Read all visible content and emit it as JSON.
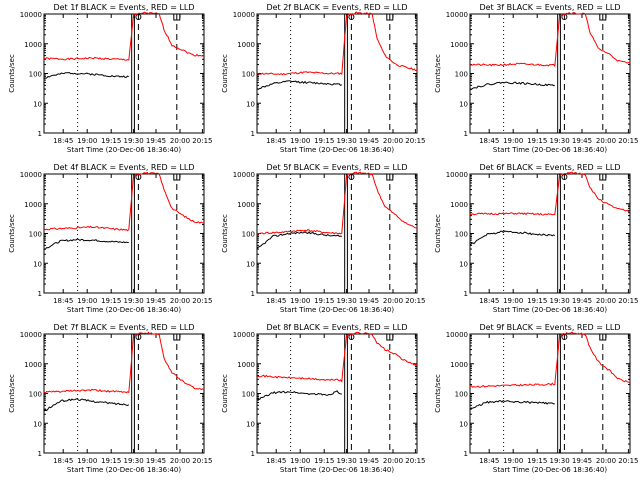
{
  "chart_data": [
    {
      "type": "line",
      "title": "Det 1f BLACK = Events, RED = LLD",
      "xlabel": "Start Time (20-Dec-06 18:36:40)",
      "ylabel": "Counts/sec",
      "yscale": "log",
      "ylim": [
        1,
        10000
      ],
      "yticks": [
        "1",
        "10",
        "100",
        "1000",
        "10000"
      ],
      "xticks": [
        "18:45",
        "19:00",
        "19:15",
        "19:30",
        "19:45",
        "20:00",
        "20:15"
      ],
      "grid": false,
      "series": [
        {
          "color": "#ff0000",
          "label": "LLD",
          "values": [
            [
              0,
              320
            ],
            [
              0.15,
              305
            ],
            [
              0.3,
              330
            ],
            [
              0.45,
              300
            ],
            [
              0.53,
              290
            ],
            [
              0.56,
              9000
            ],
            [
              0.62,
              11000
            ],
            [
              0.72,
              10000
            ],
            [
              0.75,
              3000
            ],
            [
              0.8,
              900
            ],
            [
              0.87,
              600
            ],
            [
              0.93,
              420
            ],
            [
              1,
              400
            ]
          ]
        },
        {
          "color": "#000000",
          "label": "Events",
          "values": [
            [
              0,
              70
            ],
            [
              0.05,
              85
            ],
            [
              0.15,
              105
            ],
            [
              0.3,
              95
            ],
            [
              0.45,
              80
            ],
            [
              0.53,
              78
            ]
          ]
        }
      ]
    },
    {
      "type": "line",
      "title": "Det 2f BLACK = Events, RED = LLD",
      "xlabel": "Start Time (20-Dec-06 18:36:40)",
      "ylabel": "Counts/sec",
      "yscale": "log",
      "ylim": [
        1,
        10000
      ],
      "yticks": [
        "1",
        "10",
        "100",
        "1000",
        "10000"
      ],
      "xticks": [
        "18:45",
        "19:00",
        "19:15",
        "19:30",
        "19:45",
        "20:00",
        "20:15"
      ],
      "grid": false,
      "series": [
        {
          "color": "#ff0000",
          "label": "LLD",
          "values": [
            [
              0,
              100
            ],
            [
              0.15,
              95
            ],
            [
              0.3,
              110
            ],
            [
              0.45,
              100
            ],
            [
              0.53,
              100
            ],
            [
              0.56,
              9000
            ],
            [
              0.62,
              11000
            ],
            [
              0.72,
              10000
            ],
            [
              0.75,
              1500
            ],
            [
              0.8,
              400
            ],
            [
              0.87,
              200
            ],
            [
              0.93,
              160
            ],
            [
              1,
              130
            ]
          ]
        },
        {
          "color": "#000000",
          "label": "Events",
          "values": [
            [
              0,
              30
            ],
            [
              0.1,
              45
            ],
            [
              0.2,
              55
            ],
            [
              0.3,
              50
            ],
            [
              0.45,
              45
            ],
            [
              0.53,
              42
            ]
          ]
        }
      ]
    },
    {
      "type": "line",
      "title": "Det 3f BLACK = Events, RED = LLD",
      "xlabel": "Start Time (20-Dec-06 18:36:40)",
      "ylabel": "Counts/sec",
      "yscale": "log",
      "ylim": [
        1,
        10000
      ],
      "yticks": [
        "1",
        "10",
        "100",
        "1000",
        "10000"
      ],
      "xticks": [
        "18:45",
        "19:00",
        "19:15",
        "19:30",
        "19:45",
        "20:00",
        "20:15"
      ],
      "grid": false,
      "series": [
        {
          "color": "#ff0000",
          "label": "LLD",
          "values": [
            [
              0,
              200
            ],
            [
              0.15,
              190
            ],
            [
              0.3,
              210
            ],
            [
              0.45,
              195
            ],
            [
              0.53,
              190
            ],
            [
              0.56,
              9000
            ],
            [
              0.62,
              11000
            ],
            [
              0.72,
              10000
            ],
            [
              0.75,
              2500
            ],
            [
              0.8,
              700
            ],
            [
              0.87,
              450
            ],
            [
              0.93,
              260
            ],
            [
              1,
              220
            ]
          ]
        },
        {
          "color": "#000000",
          "label": "Events",
          "values": [
            [
              0,
              30
            ],
            [
              0.1,
              42
            ],
            [
              0.2,
              50
            ],
            [
              0.3,
              48
            ],
            [
              0.45,
              42
            ],
            [
              0.53,
              40
            ]
          ]
        }
      ]
    },
    {
      "type": "line",
      "title": "Det 4f BLACK = Events, RED = LLD",
      "xlabel": "Start Time (20-Dec-06 18:36:40)",
      "ylabel": "Counts/sec",
      "yscale": "log",
      "ylim": [
        1,
        10000
      ],
      "yticks": [
        "1",
        "10",
        "100",
        "1000",
        "10000"
      ],
      "xticks": [
        "18:45",
        "19:00",
        "19:15",
        "19:30",
        "19:45",
        "20:00",
        "20:15"
      ],
      "grid": false,
      "series": [
        {
          "color": "#ff0000",
          "label": "LLD",
          "values": [
            [
              0,
              140
            ],
            [
              0.15,
              150
            ],
            [
              0.3,
              165
            ],
            [
              0.45,
              140
            ],
            [
              0.53,
              130
            ],
            [
              0.56,
              9000
            ],
            [
              0.62,
              11000
            ],
            [
              0.72,
              10000
            ],
            [
              0.75,
              3000
            ],
            [
              0.8,
              700
            ],
            [
              0.87,
              400
            ],
            [
              0.93,
              260
            ],
            [
              1,
              220
            ]
          ]
        },
        {
          "color": "#000000",
          "label": "Events",
          "values": [
            [
              0,
              30
            ],
            [
              0.1,
              55
            ],
            [
              0.2,
              62
            ],
            [
              0.3,
              60
            ],
            [
              0.45,
              52
            ],
            [
              0.53,
              50
            ]
          ]
        }
      ]
    },
    {
      "type": "line",
      "title": "Det 5f BLACK = Events, RED = LLD",
      "xlabel": "Start Time (20-Dec-06 18:36:40)",
      "ylabel": "Counts/sec",
      "yscale": "log",
      "ylim": [
        1,
        10000
      ],
      "yticks": [
        "1",
        "10",
        "100",
        "1000",
        "10000"
      ],
      "xticks": [
        "18:45",
        "19:00",
        "19:15",
        "19:30",
        "19:45",
        "20:00",
        "20:15"
      ],
      "grid": false,
      "series": [
        {
          "color": "#ff0000",
          "label": "LLD",
          "values": [
            [
              0,
              100
            ],
            [
              0.15,
              110
            ],
            [
              0.3,
              130
            ],
            [
              0.45,
              105
            ],
            [
              0.53,
              100
            ],
            [
              0.56,
              9000
            ],
            [
              0.62,
              11000
            ],
            [
              0.72,
              10000
            ],
            [
              0.75,
              3000
            ],
            [
              0.8,
              800
            ],
            [
              0.87,
              400
            ],
            [
              0.93,
              220
            ],
            [
              1,
              150
            ]
          ]
        },
        {
          "color": "#000000",
          "label": "Events",
          "values": [
            [
              0,
              30
            ],
            [
              0.1,
              80
            ],
            [
              0.2,
              100
            ],
            [
              0.3,
              110
            ],
            [
              0.45,
              85
            ],
            [
              0.53,
              80
            ]
          ]
        }
      ]
    },
    {
      "type": "line",
      "title": "Det 6f BLACK = Events, RED = LLD",
      "xlabel": "Start Time (20-Dec-06 18:36:40)",
      "ylabel": "Counts/sec",
      "yscale": "log",
      "ylim": [
        1,
        10000
      ],
      "yticks": [
        "1",
        "10",
        "100",
        "1000",
        "10000"
      ],
      "xticks": [
        "18:45",
        "19:00",
        "19:15",
        "19:30",
        "19:45",
        "20:00",
        "20:15"
      ],
      "grid": false,
      "series": [
        {
          "color": "#ff0000",
          "label": "LLD",
          "values": [
            [
              0,
              450
            ],
            [
              0.15,
              460
            ],
            [
              0.3,
              470
            ],
            [
              0.45,
              440
            ],
            [
              0.53,
              430
            ],
            [
              0.56,
              9000
            ],
            [
              0.62,
              11000
            ],
            [
              0.72,
              10000
            ],
            [
              0.75,
              3500
            ],
            [
              0.8,
              1500
            ],
            [
              0.87,
              900
            ],
            [
              0.93,
              650
            ],
            [
              1,
              550
            ]
          ]
        },
        {
          "color": "#000000",
          "label": "Events",
          "values": [
            [
              0,
              40
            ],
            [
              0.1,
              90
            ],
            [
              0.2,
              115
            ],
            [
              0.3,
              110
            ],
            [
              0.45,
              90
            ],
            [
              0.53,
              85
            ]
          ]
        }
      ]
    },
    {
      "type": "line",
      "title": "Det 7f BLACK = Events, RED = LLD",
      "xlabel": "Start Time (20-Dec-06 18:36:40)",
      "ylabel": "Counts/sec",
      "yscale": "log",
      "ylim": [
        1,
        10000
      ],
      "yticks": [
        "1",
        "10",
        "100",
        "1000",
        "10000"
      ],
      "xticks": [
        "18:45",
        "19:00",
        "19:15",
        "19:30",
        "19:45",
        "20:00",
        "20:15"
      ],
      "grid": false,
      "series": [
        {
          "color": "#ff0000",
          "label": "LLD",
          "values": [
            [
              0,
              110
            ],
            [
              0.15,
              120
            ],
            [
              0.3,
              130
            ],
            [
              0.45,
              115
            ],
            [
              0.53,
              110
            ],
            [
              0.56,
              9000
            ],
            [
              0.62,
              11000
            ],
            [
              0.72,
              10000
            ],
            [
              0.75,
              1500
            ],
            [
              0.8,
              500
            ],
            [
              0.87,
              250
            ],
            [
              0.93,
              160
            ],
            [
              1,
              130
            ]
          ]
        },
        {
          "color": "#000000",
          "label": "Events",
          "values": [
            [
              0,
              25
            ],
            [
              0.1,
              55
            ],
            [
              0.2,
              65
            ],
            [
              0.3,
              55
            ],
            [
              0.45,
              45
            ],
            [
              0.53,
              42
            ]
          ]
        }
      ]
    },
    {
      "type": "line",
      "title": "Det 8f BLACK = Events, RED = LLD",
      "xlabel": "Start Time (20-Dec-06 18:36:40)",
      "ylabel": "Counts/sec",
      "yscale": "log",
      "ylim": [
        1,
        10000
      ],
      "yticks": [
        "1",
        "10",
        "100",
        "1000",
        "10000"
      ],
      "xticks": [
        "18:45",
        "19:00",
        "19:15",
        "19:30",
        "19:45",
        "20:00",
        "20:15"
      ],
      "grid": false,
      "series": [
        {
          "color": "#ff0000",
          "label": "LLD",
          "values": [
            [
              0,
              400
            ],
            [
              0.15,
              350
            ],
            [
              0.3,
              320
            ],
            [
              0.45,
              280
            ],
            [
              0.5,
              300
            ],
            [
              0.53,
              260
            ],
            [
              0.56,
              9000
            ],
            [
              0.62,
              11000
            ],
            [
              0.72,
              10000
            ],
            [
              0.75,
              5000
            ],
            [
              0.8,
              3000
            ],
            [
              0.87,
              2000
            ],
            [
              0.93,
              1200
            ],
            [
              1,
              900
            ]
          ]
        },
        {
          "color": "#000000",
          "label": "Events",
          "values": [
            [
              0,
              60
            ],
            [
              0.1,
              105
            ],
            [
              0.2,
              115
            ],
            [
              0.3,
              100
            ],
            [
              0.45,
              90
            ],
            [
              0.5,
              120
            ],
            [
              0.53,
              95
            ]
          ]
        }
      ]
    },
    {
      "type": "line",
      "title": "Det 9f BLACK = Events, RED = LLD",
      "xlabel": "Start Time (20-Dec-06 18:36:40)",
      "ylabel": "Counts/sec",
      "yscale": "log",
      "ylim": [
        1,
        10000
      ],
      "yticks": [
        "1",
        "10",
        "100",
        "1000",
        "10000"
      ],
      "xticks": [
        "18:45",
        "19:00",
        "19:15",
        "19:30",
        "19:45",
        "20:00",
        "20:15"
      ],
      "grid": false,
      "series": [
        {
          "color": "#ff0000",
          "label": "LLD",
          "values": [
            [
              0,
              170
            ],
            [
              0.15,
              180
            ],
            [
              0.3,
              190
            ],
            [
              0.45,
              200
            ],
            [
              0.53,
              210
            ],
            [
              0.56,
              9000
            ],
            [
              0.62,
              11000
            ],
            [
              0.72,
              10000
            ],
            [
              0.75,
              3500
            ],
            [
              0.8,
              1200
            ],
            [
              0.87,
              600
            ],
            [
              0.93,
              300
            ],
            [
              1,
              230
            ]
          ]
        },
        {
          "color": "#000000",
          "label": "Events",
          "values": [
            [
              0,
              30
            ],
            [
              0.1,
              50
            ],
            [
              0.2,
              55
            ],
            [
              0.3,
              52
            ],
            [
              0.45,
              48
            ],
            [
              0.53,
              45
            ]
          ]
        }
      ]
    }
  ]
}
